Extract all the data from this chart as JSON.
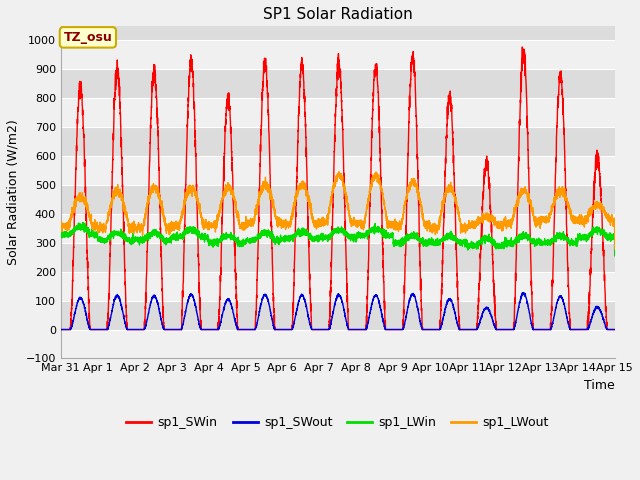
{
  "title": "SP1 Solar Radiation",
  "ylabel": "Solar Radiation (W/m2)",
  "xlabel": "Time",
  "ylim": [
    -100,
    1050
  ],
  "xlim": [
    0,
    15.0
  ],
  "plot_bg_light": "#f0f0f0",
  "plot_bg_dark": "#dcdcdc",
  "fig_bg_color": "#f0f0f0",
  "grid_color": "#ffffff",
  "tz_label": "TZ_osu",
  "tz_box_color": "#ffffcc",
  "tz_box_edge": "#ccaa00",
  "tz_text_color": "#880000",
  "series_colors": {
    "sp1_SWin": "#ff0000",
    "sp1_SWout": "#0000dd",
    "sp1_LWin": "#00dd00",
    "sp1_LWout": "#ff9900"
  },
  "xtick_labels": [
    "Mar 31",
    "Apr 1",
    "Apr 2",
    "Apr 3",
    "Apr 4",
    "Apr 5",
    "Apr 6",
    "Apr 7",
    "Apr 8",
    "Apr 9",
    "Apr 10",
    "Apr 11",
    "Apr 12",
    "Apr 13",
    "Apr 14",
    "Apr 15"
  ],
  "xtick_positions": [
    0,
    1,
    2,
    3,
    4,
    5,
    6,
    7,
    8,
    9,
    10,
    11,
    12,
    13,
    14,
    15
  ],
  "ytick_positions": [
    -100,
    0,
    100,
    200,
    300,
    400,
    500,
    600,
    700,
    800,
    900,
    1000
  ],
  "legend_entries": [
    "sp1_SWin",
    "sp1_SWout",
    "sp1_LWin",
    "sp1_LWout"
  ],
  "swi_peaks": [
    840,
    900,
    890,
    930,
    800,
    920,
    910,
    920,
    910,
    940,
    800,
    580,
    960,
    880,
    600
  ],
  "base_lwin": [
    330,
    310,
    310,
    320,
    300,
    310,
    315,
    320,
    325,
    300,
    300,
    290,
    300,
    300,
    320
  ],
  "base_lwout": [
    360,
    350,
    350,
    360,
    360,
    370,
    365,
    370,
    365,
    360,
    350,
    360,
    370,
    380,
    380
  ],
  "peak_lwout": [
    460,
    480,
    490,
    490,
    490,
    500,
    500,
    535,
    530,
    510,
    490,
    390,
    480,
    480,
    430
  ]
}
